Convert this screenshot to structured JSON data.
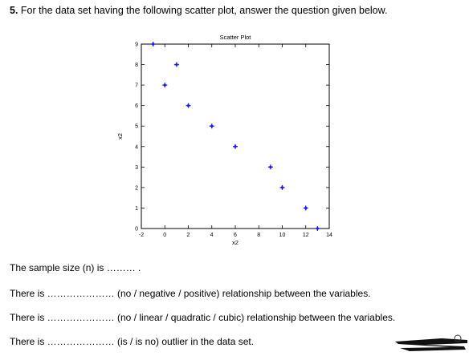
{
  "question": {
    "number": "5.",
    "text": "For the data set having the following scatter plot, answer the question given below."
  },
  "chart_data": {
    "type": "scatter",
    "title": "Scatter Plot",
    "xlabel": "x2",
    "ylabel": "x2",
    "xlim": [
      -2,
      14
    ],
    "ylim": [
      0,
      9
    ],
    "x_ticks": [
      -2,
      0,
      2,
      4,
      6,
      8,
      10,
      12,
      14
    ],
    "y_ticks": [
      0,
      1,
      2,
      3,
      4,
      5,
      6,
      7,
      8,
      9
    ],
    "marker_color": "#1a1aff",
    "grid": false,
    "points": [
      {
        "x": -1,
        "y": 9
      },
      {
        "x": 0,
        "y": 7
      },
      {
        "x": 1,
        "y": 8
      },
      {
        "x": 2,
        "y": 6
      },
      {
        "x": 4,
        "y": 5
      },
      {
        "x": 6,
        "y": 4
      },
      {
        "x": 9,
        "y": 3
      },
      {
        "x": 10,
        "y": 2
      },
      {
        "x": 12,
        "y": 1
      },
      {
        "x": 13,
        "y": 0
      }
    ]
  },
  "lines": {
    "sample_size": "The sample size (n) is ……… .",
    "relationship_direction": "There is ………………… (no / negative / positive) relationship between the variables.",
    "relationship_form": "There is ………………… (no / linear / quadratic / cubic) relationship between the variables.",
    "outlier": "There is ………………… (is / is no) outlier in the data set."
  }
}
